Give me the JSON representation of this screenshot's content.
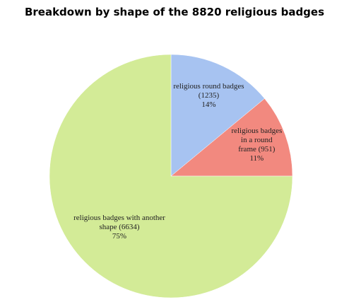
{
  "chart_data": {
    "type": "pie",
    "title": "Breakdown by shape of the 8820 religious badges",
    "categories": [
      "religious round badges (1235)",
      "religious badges in a round frame (951)",
      "religious badges with another shape (6634)"
    ],
    "values": [
      14,
      11,
      75
    ],
    "value_labels": [
      "14%",
      "11%",
      "75%"
    ],
    "colors": [
      "#a7c3f1",
      "#f2897f",
      "#d3eb97"
    ],
    "start_angle": 0,
    "direction": "clockwise"
  }
}
